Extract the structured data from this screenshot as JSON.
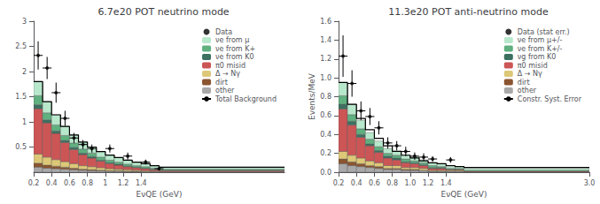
{
  "chart_data": [
    {
      "type": "bar",
      "stacked": true,
      "title": "6.7e20 POT neutrino mode",
      "xlabel": "EνQE (GeV)",
      "bins": [
        0.2,
        0.3,
        0.4,
        0.5,
        0.6,
        0.7,
        0.8,
        0.9,
        1.0,
        1.1,
        1.2,
        1.3,
        1.4,
        1.5,
        1.6,
        3.0
      ],
      "series": [
        {
          "name": "other",
          "color": "#a8a8a8",
          "values": [
            0.1,
            0.08,
            0.07,
            0.06,
            0.05,
            0.04,
            0.03,
            0.03,
            0.02,
            0.02,
            0.01,
            0.01,
            0.01,
            0.01,
            0.0
          ]
        },
        {
          "name": "dirt",
          "color": "#8b5530",
          "values": [
            0.08,
            0.06,
            0.05,
            0.04,
            0.03,
            0.02,
            0.02,
            0.01,
            0.01,
            0.01,
            0.01,
            0.01,
            0.0,
            0.0,
            0.0
          ]
        },
        {
          "name": "Δ → Nγ",
          "color": "#ddc878",
          "values": [
            0.18,
            0.16,
            0.13,
            0.11,
            0.09,
            0.07,
            0.06,
            0.05,
            0.04,
            0.03,
            0.03,
            0.02,
            0.02,
            0.01,
            0.01
          ]
        },
        {
          "name": "π0 misid",
          "color": "#cc5555",
          "values": [
            0.9,
            0.68,
            0.52,
            0.38,
            0.28,
            0.22,
            0.17,
            0.13,
            0.1,
            0.08,
            0.06,
            0.05,
            0.04,
            0.03,
            0.02
          ]
        },
        {
          "name": "νe from K0",
          "color": "#3d7060",
          "values": [
            0.08,
            0.06,
            0.05,
            0.04,
            0.04,
            0.03,
            0.03,
            0.02,
            0.02,
            0.02,
            0.01,
            0.01,
            0.01,
            0.01,
            0.01
          ]
        },
        {
          "name": "νe from K+",
          "color": "#60b080",
          "values": [
            0.18,
            0.14,
            0.12,
            0.1,
            0.09,
            0.08,
            0.07,
            0.06,
            0.05,
            0.04,
            0.04,
            0.03,
            0.03,
            0.02,
            0.02
          ]
        },
        {
          "name": "νe from μ",
          "color": "#b8e8cc",
          "values": [
            0.28,
            0.22,
            0.2,
            0.18,
            0.16,
            0.14,
            0.12,
            0.11,
            0.1,
            0.09,
            0.08,
            0.07,
            0.06,
            0.05,
            0.04
          ]
        }
      ],
      "total_background": {
        "name": "Total Background",
        "type": "line",
        "color": "#000000",
        "values": [
          1.8,
          1.4,
          1.14,
          0.91,
          0.74,
          0.6,
          0.5,
          0.41,
          0.34,
          0.29,
          0.24,
          0.2,
          0.17,
          0.13,
          0.1
        ]
      },
      "data_points": {
        "name": "Data",
        "type": "scatter",
        "marker": "circle",
        "color": "#000000",
        "x": [
          0.25,
          0.35,
          0.45,
          0.55,
          0.65,
          0.75,
          0.85,
          1.05,
          1.25,
          1.45,
          1.6
        ],
        "y": [
          2.32,
          2.07,
          1.58,
          1.07,
          0.68,
          0.55,
          0.47,
          0.47,
          0.32,
          0.2,
          0.07
        ],
        "xerr": [
          0.05,
          0.05,
          0.05,
          0.05,
          0.05,
          0.05,
          0.05,
          0.05,
          0.05,
          0.05,
          0.05
        ],
        "yerr_lo": [
          0.28,
          0.22,
          0.2,
          0.15,
          0.1,
          0.09,
          0.08,
          0.08,
          0.07,
          0.05,
          0.03
        ],
        "yerr_hi": [
          0.28,
          0.22,
          0.2,
          0.15,
          0.1,
          0.09,
          0.08,
          0.08,
          0.07,
          0.05,
          0.03
        ]
      },
      "xlim": [
        0.2,
        3.0
      ],
      "xticks": [
        0.2,
        0.4,
        0.6,
        0.8,
        1,
        1.2,
        1.4
      ],
      "ylim": [
        0,
        3.0
      ],
      "yticks": [
        0.5,
        1,
        1.5,
        2,
        2.5,
        3
      ],
      "grid": false,
      "legend": "upper right"
    },
    {
      "type": "bar",
      "stacked": true,
      "title": "11.3e20 POT anti-neutrino mode",
      "xlabel": "EνQE (GeV)",
      "ylabel": "Events/MeV",
      "bins": [
        0.2,
        0.3,
        0.4,
        0.5,
        0.6,
        0.7,
        0.8,
        0.9,
        1.0,
        1.1,
        1.2,
        1.3,
        1.4,
        1.5,
        1.6,
        3.0
      ],
      "series": [
        {
          "name": "other",
          "color": "#a8a8a8",
          "values": [
            0.09,
            0.07,
            0.06,
            0.05,
            0.04,
            0.03,
            0.03,
            0.02,
            0.02,
            0.02,
            0.01,
            0.01,
            0.01,
            0.01,
            0.0
          ]
        },
        {
          "name": "dirt",
          "color": "#8b5530",
          "values": [
            0.05,
            0.04,
            0.03,
            0.02,
            0.02,
            0.01,
            0.01,
            0.01,
            0.01,
            0.0,
            0.0,
            0.0,
            0.0,
            0.0,
            0.0
          ]
        },
        {
          "name": "Δ → Nγ",
          "color": "#ddc878",
          "values": [
            0.08,
            0.07,
            0.06,
            0.05,
            0.04,
            0.03,
            0.03,
            0.02,
            0.02,
            0.02,
            0.01,
            0.01,
            0.01,
            0.01,
            0.0
          ]
        },
        {
          "name": "π0 misid",
          "color": "#cc5555",
          "values": [
            0.45,
            0.32,
            0.22,
            0.16,
            0.11,
            0.08,
            0.06,
            0.05,
            0.04,
            0.03,
            0.02,
            0.02,
            0.01,
            0.01,
            0.01
          ]
        },
        {
          "name": "νg from K0",
          "color": "#3d7060",
          "values": [
            0.05,
            0.04,
            0.03,
            0.02,
            0.02,
            0.02,
            0.02,
            0.01,
            0.01,
            0.01,
            0.01,
            0.01,
            0.0,
            0.0,
            0.0
          ]
        },
        {
          "name": "νe from K+/-",
          "color": "#60b080",
          "values": [
            0.09,
            0.07,
            0.06,
            0.05,
            0.04,
            0.03,
            0.03,
            0.03,
            0.02,
            0.02,
            0.02,
            0.01,
            0.01,
            0.01,
            0.01
          ]
        },
        {
          "name": "νe from μ+/-",
          "color": "#b8e8cc",
          "values": [
            0.14,
            0.11,
            0.09,
            0.07,
            0.06,
            0.05,
            0.05,
            0.04,
            0.04,
            0.03,
            0.03,
            0.03,
            0.02,
            0.02,
            0.02
          ]
        }
      ],
      "total_background": {
        "name": "Constr. Syst. Error",
        "type": "line",
        "color": "#000000",
        "values": [
          0.95,
          0.72,
          0.57,
          0.45,
          0.36,
          0.28,
          0.22,
          0.18,
          0.15,
          0.12,
          0.1,
          0.09,
          0.07,
          0.06,
          0.05
        ]
      },
      "data_points": {
        "name": "Data (stat err.)",
        "type": "scatter",
        "marker": "circle",
        "color": "#000000",
        "x": [
          0.25,
          0.35,
          0.45,
          0.55,
          0.65,
          0.75,
          0.85,
          0.95,
          1.05,
          1.15,
          1.25,
          1.45
        ],
        "y": [
          1.23,
          0.94,
          0.65,
          0.59,
          0.47,
          0.31,
          0.28,
          0.22,
          0.17,
          0.16,
          0.14,
          0.13
        ],
        "xerr": [
          0.05,
          0.05,
          0.05,
          0.05,
          0.05,
          0.05,
          0.05,
          0.05,
          0.05,
          0.05,
          0.05,
          0.05
        ],
        "yerr_lo": [
          0.22,
          0.14,
          0.1,
          0.09,
          0.07,
          0.06,
          0.05,
          0.05,
          0.04,
          0.04,
          0.03,
          0.03
        ],
        "yerr_hi": [
          0.22,
          0.14,
          0.1,
          0.09,
          0.07,
          0.06,
          0.05,
          0.05,
          0.04,
          0.04,
          0.03,
          0.03
        ]
      },
      "xlim": [
        0.2,
        3.0
      ],
      "xticks": [
        0.2,
        0.4,
        0.6,
        0.8,
        {
          "value": 1.0,
          "label": "1.0"
        },
        1.2,
        1.4,
        {
          "value": 3.0,
          "label": "3.0"
        }
      ],
      "ylim": [
        0,
        1.6
      ],
      "yticks": [
        {
          "value": 0.0,
          "label": "0.0"
        },
        0.2,
        0.4,
        0.6,
        0.8,
        {
          "value": 1.0,
          "label": "1.0"
        },
        1.2,
        1.4,
        1.6
      ],
      "grid": false,
      "legend": "upper right"
    }
  ]
}
